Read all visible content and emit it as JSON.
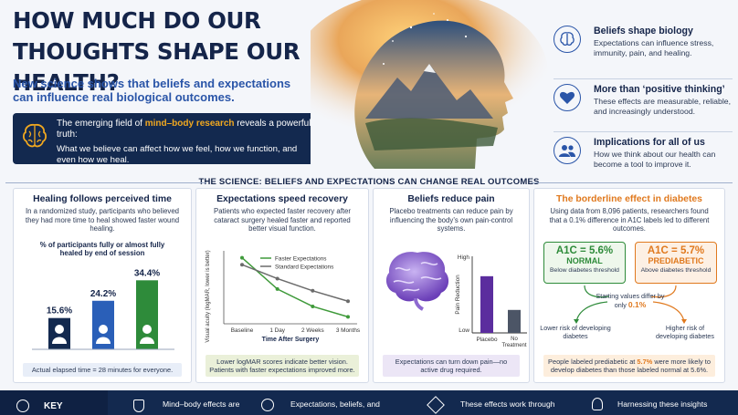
{
  "header": {
    "title": "How much do our thoughts shape our health?",
    "subtitle": "New science shows that beliefs and expectations can influence real biological outcomes.",
    "callout": {
      "pre": "The emerging field of ",
      "highlight": "mind–body research",
      "post": " reveals a powerful truth:",
      "line2": "What we believe can affect how we feel, how we function, and even how we heal."
    }
  },
  "side": [
    {
      "icon": "brain-icon",
      "title": "Beliefs shape biology",
      "text": "Expectations can influence stress, immunity, pain, and healing."
    },
    {
      "icon": "heart-icon",
      "title": "More than ‘positive thinking’",
      "text": "These effects are measurable, reliable, and increasingly understood."
    },
    {
      "icon": "people-icon",
      "title": "Implications for all of us",
      "text": "How we think about our health can become a tool to improve it."
    }
  ],
  "science_title": "THE SCIENCE: BELIEFS AND EXPECTATIONS CAN CHANGE REAL OUTCOMES",
  "panel1": {
    "title": "Healing follows perceived time",
    "body": "In a randomized study, participants who believed they had more time to heal showed faster wound healing.",
    "metric": "% of participants fully or almost fully healed by end of session",
    "note": "Actual elapsed time = 28 minutes for everyone."
  },
  "panel2": {
    "title": "Expectations speed recovery",
    "body": "Patients who expected faster recovery after cataract surgery healed faster and reported better visual function.",
    "note": "Lower logMAR scores indicate better vision. Patients with faster expectations improved more."
  },
  "panel3": {
    "title": "Beliefs reduce pain",
    "body": "Placebo treatments can reduce pain by influencing the body’s own pain-control systems.",
    "note": "Expectations can turn down pain—no active drug required."
  },
  "panel4": {
    "title": "The borderline effect in diabetes",
    "body": "Using data from 8,096 patients, researchers found that a 0.1% difference in A1C labels led to different outcomes.",
    "normal": {
      "value": "A1C = 5.6%",
      "label": "NORMAL",
      "sub": "Below diabetes threshold"
    },
    "prediabetic": {
      "value": "A1C = 5.7%",
      "label": "PREDIABETIC",
      "sub": "Above diabetes threshold"
    },
    "differ_pre": "Starting values differ by only ",
    "differ_val": "0.1%",
    "lower": "Lower risk of developing diabetes",
    "higher": "Higher risk of developing diabetes",
    "note_pre": "People labeled prediabetic at ",
    "note_hl": "5.7%",
    "note_post": " were more likely to develop diabetes than those labeled normal at 5.6%."
  },
  "bottom": {
    "key": "KEY",
    "items": [
      "Mind–body effects are",
      "Expectations, beliefs, and",
      "These effects work through",
      "Harnessing these insights"
    ]
  },
  "colors": {
    "navy": "#13294f",
    "blue": "#2a55a8",
    "green": "#2e8b3a",
    "orange": "#e0791e",
    "purple": "#5b2d9e"
  },
  "chart_data": [
    {
      "type": "bar",
      "categories": [
        "",
        "",
        ""
      ],
      "values": [
        15.6,
        24.2,
        34.4
      ],
      "labels": [
        "15.6%",
        "24.2%",
        "34.4%"
      ],
      "colors": [
        "#13294f",
        "#2a5fb8",
        "#2e8b3a"
      ],
      "ylim": [
        0,
        40
      ]
    },
    {
      "type": "line",
      "xlabel": "Time After Surgery",
      "ylabel": "Visual acuity (logMAR, lower is better)",
      "categories": [
        "Baseline",
        "1 Day",
        "2 Weeks",
        "3 Months"
      ],
      "series": [
        {
          "name": "Faster Expectations",
          "values": [
            0.22,
            0.04,
            -0.06,
            -0.12
          ],
          "color": "#3f9a3a"
        },
        {
          "name": "Standard Expectations",
          "values": [
            0.18,
            0.1,
            0.03,
            -0.03
          ],
          "color": "#6b6b6b"
        }
      ],
      "ylim": [
        -0.16,
        0.26
      ]
    },
    {
      "type": "bar",
      "ylabel": "Pain Reduction",
      "ytick_labels": [
        "High",
        "Low"
      ],
      "categories": [
        "Placebo",
        "No Treatment"
      ],
      "values": [
        0.74,
        0.3
      ],
      "colors": [
        "#5b2d9e",
        "#4c5566"
      ],
      "ylim": [
        0,
        1
      ]
    }
  ]
}
